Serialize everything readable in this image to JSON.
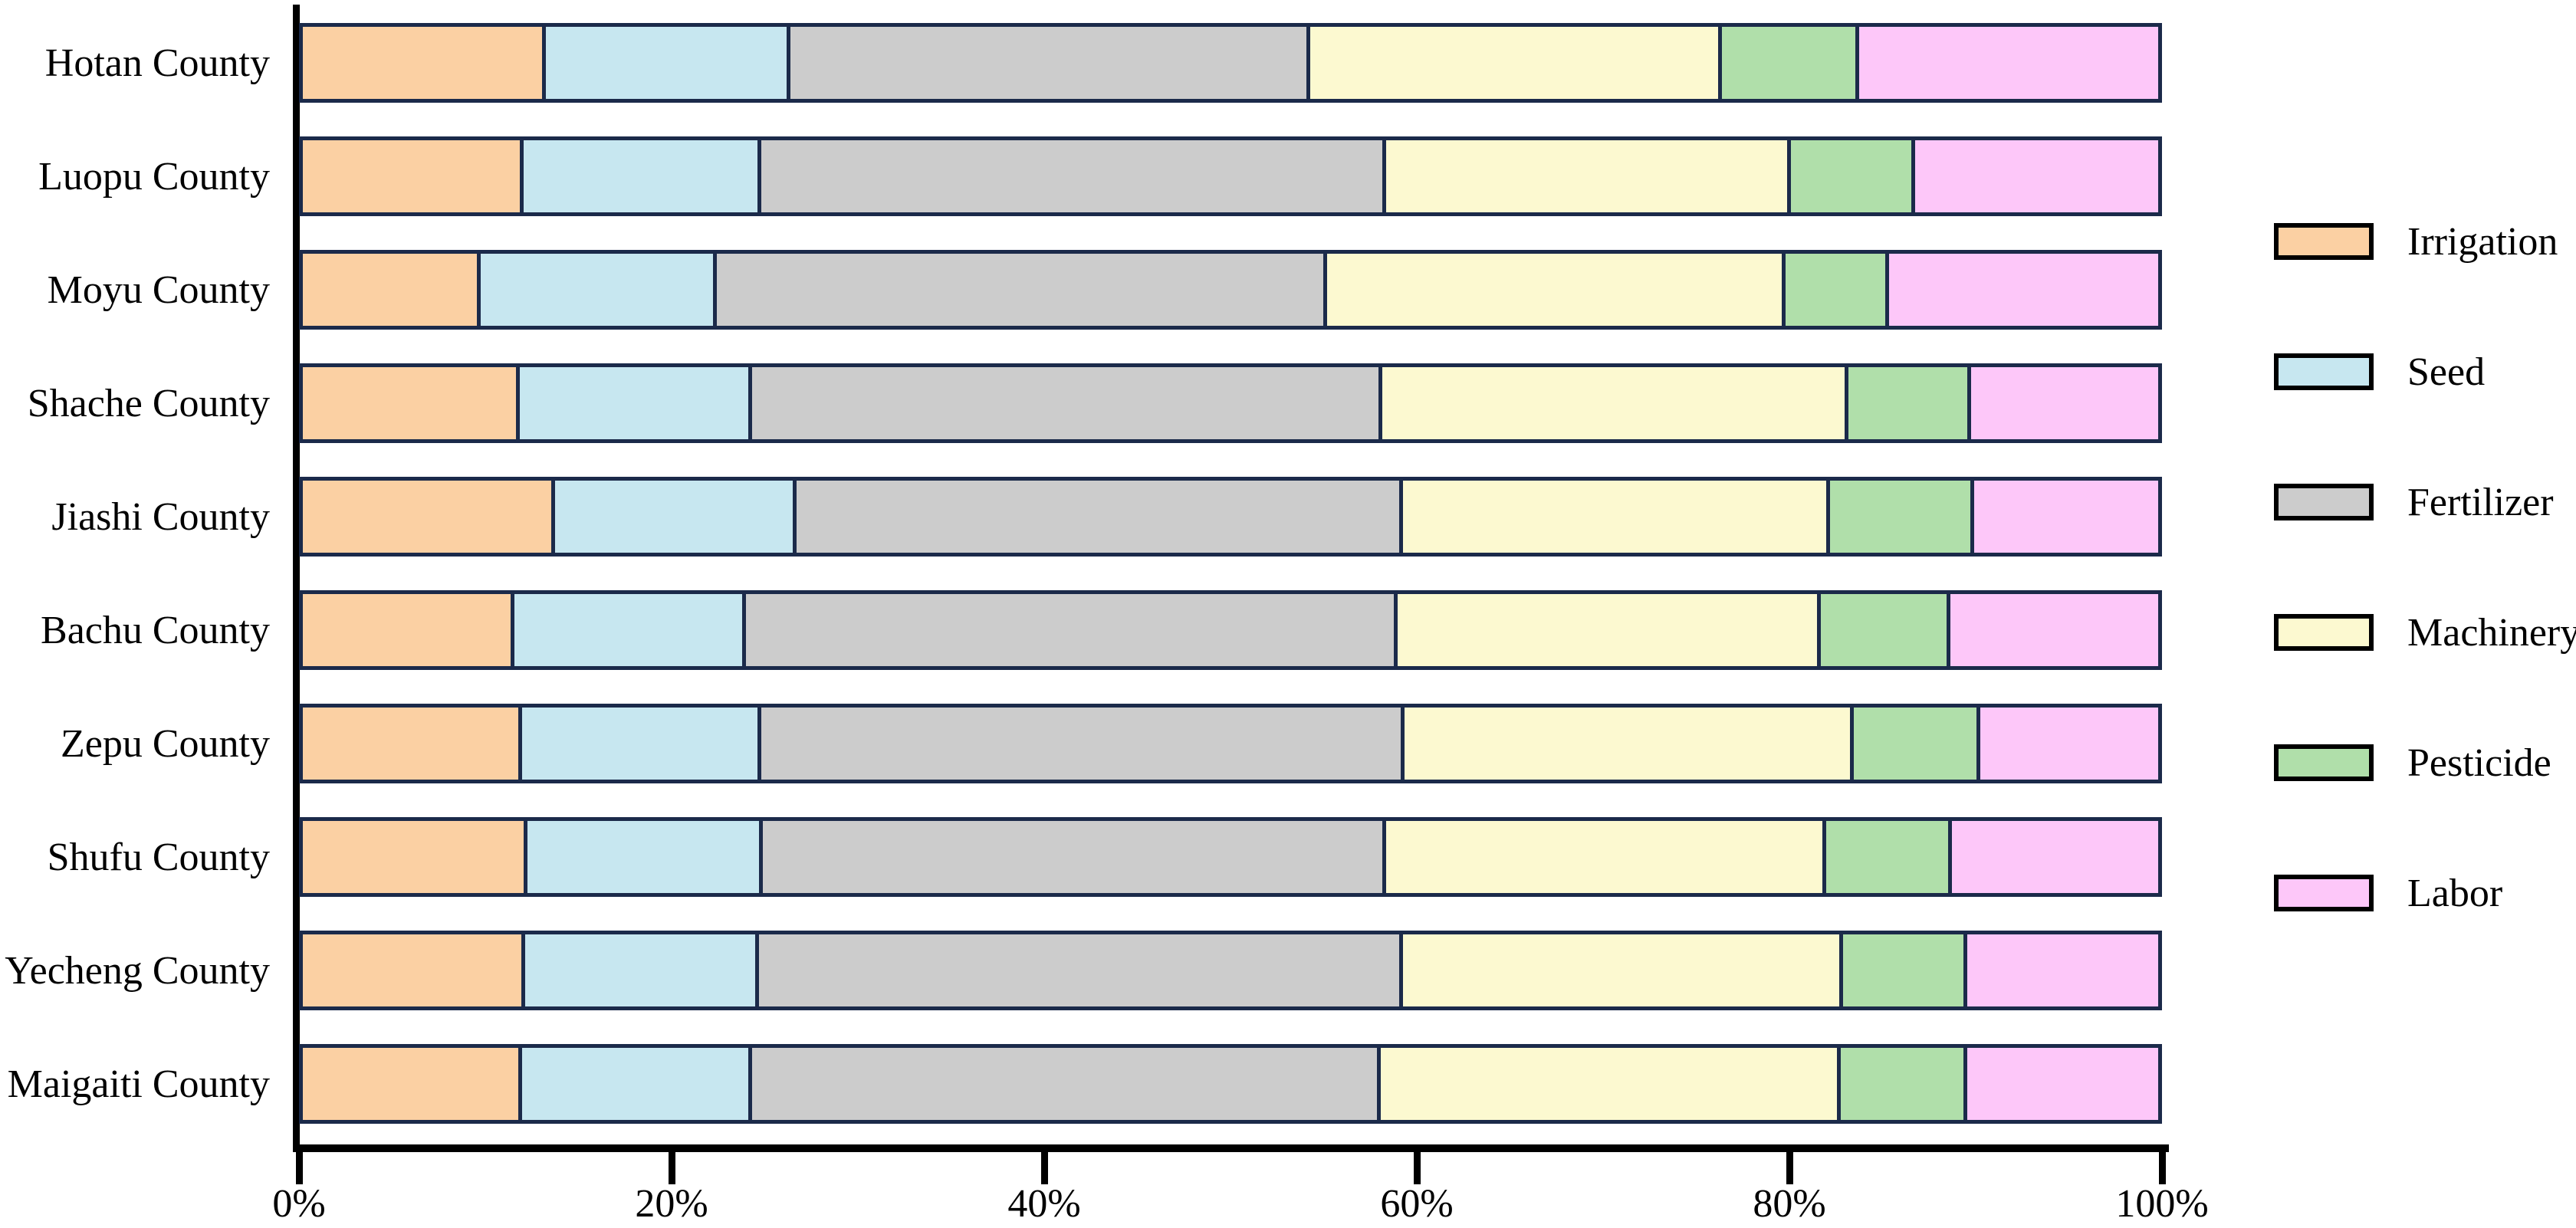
{
  "chart_data": {
    "type": "bar",
    "orientation": "horizontal",
    "stacked": true,
    "title": "",
    "xlabel": "",
    "ylabel": "",
    "unit": "percent",
    "xlim": [
      0,
      100
    ],
    "x_ticks": [
      {
        "value": 0,
        "label": "0%"
      },
      {
        "value": 20,
        "label": "20%"
      },
      {
        "value": 40,
        "label": "40%"
      },
      {
        "value": 60,
        "label": "60%"
      },
      {
        "value": 80,
        "label": "80%"
      },
      {
        "value": 100,
        "label": "100%"
      }
    ],
    "grid": false,
    "legend_position": "center-right",
    "categories": [
      "Hotan County",
      "Luopu County",
      "Moyu County",
      "Shache County",
      "Jiashi County",
      "Bachu County",
      "Zepu County",
      "Shufu County",
      "Yecheng County",
      "Maigaiti County"
    ],
    "series": [
      {
        "name": "Irrigation",
        "color": "#FBD0A3",
        "values": [
          13.1,
          11.9,
          9.6,
          11.7,
          13.6,
          11.4,
          11.8,
          12.1,
          12.0,
          11.8
        ]
      },
      {
        "name": "Seed",
        "color": "#C7E7F0",
        "values": [
          13.2,
          12.8,
          12.7,
          12.5,
          13.0,
          12.5,
          12.9,
          12.7,
          12.6,
          12.4
        ]
      },
      {
        "name": "Fertilizer",
        "color": "#CCCCCC",
        "values": [
          28.0,
          33.7,
          32.9,
          34.0,
          32.7,
          35.1,
          34.7,
          33.6,
          34.7,
          33.9
        ]
      },
      {
        "name": "Machinery",
        "color": "#FCF9D0",
        "values": [
          22.2,
          21.8,
          24.7,
          25.1,
          23.0,
          22.8,
          24.2,
          23.7,
          23.7,
          24.8
        ]
      },
      {
        "name": "Pesticide",
        "color": "#B0DFAA",
        "values": [
          7.4,
          6.7,
          5.6,
          6.6,
          7.8,
          7.0,
          6.8,
          6.8,
          6.7,
          6.8
        ]
      },
      {
        "name": "Labor",
        "color": "#FDC7F9",
        "values": [
          16.1,
          13.1,
          14.5,
          10.1,
          9.9,
          11.2,
          9.6,
          11.1,
          10.3,
          10.3
        ]
      }
    ],
    "style": {
      "bar_border_color": "#1B2A4A",
      "axis_color": "#000000",
      "legend_swatch_border_color": "#000000",
      "background_color": "#FFFFFF"
    }
  }
}
